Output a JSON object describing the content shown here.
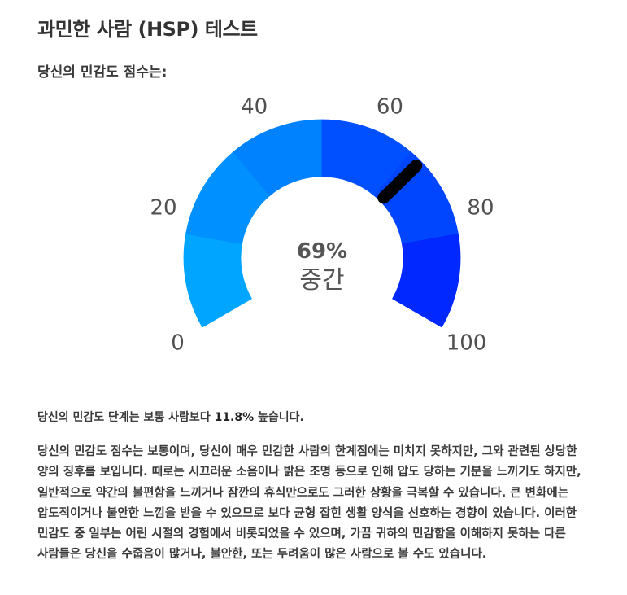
{
  "page": {
    "title": "과민한 사람 (HSP) 테스트"
  },
  "result": {
    "heading": "당신의 민감도 점수는:",
    "gauge": {
      "min": 0,
      "max": 100,
      "value": 69,
      "value_text": "69%",
      "level": "중간",
      "tick_labels": [
        "0",
        "20",
        "40",
        "60",
        "80",
        "100"
      ],
      "segment_colors": [
        "#00a5ff",
        "#0090ff",
        "#0082ff",
        "#0050ff",
        "#0045ff",
        "#0028ff"
      ],
      "needle_color": "#000000"
    },
    "comparison": {
      "prefix": "당신의 민감도 단계는 보통 사람보다 ",
      "value": "11.8%",
      "suffix": " 높습니다."
    },
    "description": "당신의 민감도 점수는 보통이며, 당신이 매우 민감한 사람의 한계점에는 미치지 못하지만, 그와 관련된 상당한 양의 징후를 보입니다. 때로는 시끄러운 소음이나 밝은 조명 등으로 인해 압도 당하는 기분을 느끼기도 하지만, 일반적으로 약간의 불편함을 느끼거나 잠깐의 휴식만으로도 그러한 상황을 극복할 수 있습니다. 큰 변화에는 압도적이거나 불안한 느낌을 받을 수 있으므로 보다 균형 잡힌 생활 양식을 선호하는 경향이 있습니다. 이러한 민감도 중 일부는 어린 시절의 경험에서 비롯되었을 수 있으며, 가끔 귀하의 민감함을 이해하지 못하는 다른 사람들은 당신을 수줍음이 많거나, 불안한, 또는 두려움이 많은 사람으로 볼 수도 있습니다."
  }
}
